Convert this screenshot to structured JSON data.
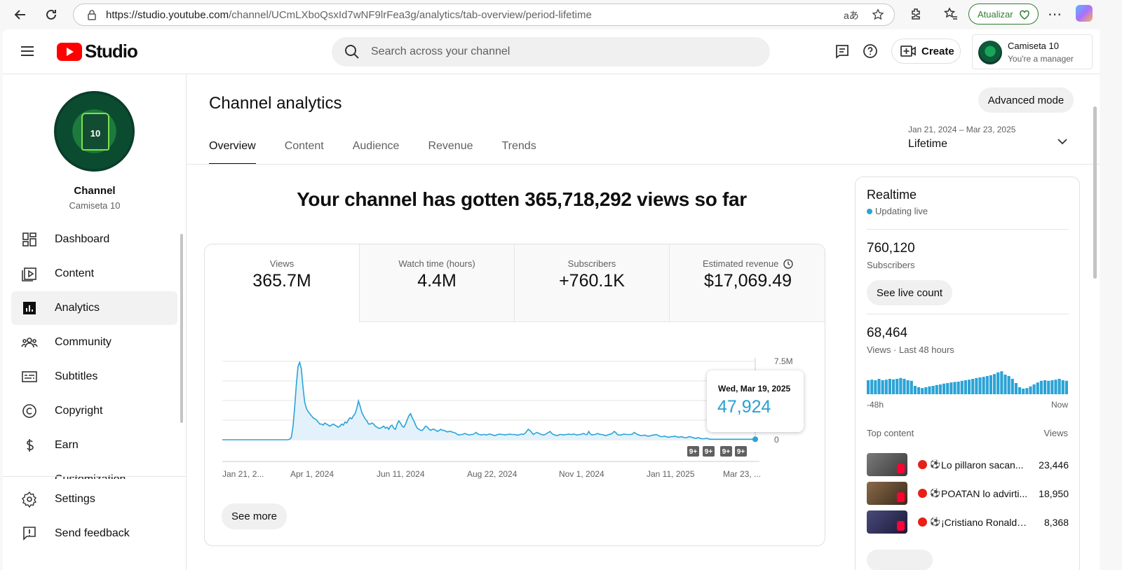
{
  "browser": {
    "url_host": "https://studio.youtube.com",
    "url_path": "/channel/UCmLXboQsxId7wNF9lrFea3g/analytics/tab-overview/period-lifetime",
    "update_label": "Atualizar"
  },
  "topbar": {
    "logo_text": "Studio",
    "search_placeholder": "Search across your channel",
    "create_label": "Create",
    "account_name": "Camiseta 10",
    "account_role": "You're a manager"
  },
  "sidebar": {
    "channel_title": "Channel",
    "channel_name": "Camiseta 10",
    "jersey_number": "10",
    "items": [
      {
        "label": "Dashboard",
        "icon": "dashboard-icon"
      },
      {
        "label": "Content",
        "icon": "content-icon"
      },
      {
        "label": "Analytics",
        "icon": "analytics-icon",
        "active": true
      },
      {
        "label": "Community",
        "icon": "community-icon"
      },
      {
        "label": "Subtitles",
        "icon": "subtitles-icon"
      },
      {
        "label": "Copyright",
        "icon": "copyright-icon"
      },
      {
        "label": "Earn",
        "icon": "earn-icon"
      },
      {
        "label": "Customization",
        "icon": "customization-icon"
      }
    ],
    "bottom": [
      {
        "label": "Settings",
        "icon": "gear-icon"
      },
      {
        "label": "Send feedback",
        "icon": "feedback-icon"
      }
    ]
  },
  "main": {
    "title": "Channel analytics",
    "advanced_label": "Advanced mode",
    "tabs": [
      "Overview",
      "Content",
      "Audience",
      "Revenue",
      "Trends"
    ],
    "period_range": "Jan 21, 2024 – Mar 23, 2025",
    "period_label": "Lifetime",
    "headline": "Your channel has gotten 365,718,292 views so far",
    "metrics": [
      {
        "label": "Views",
        "value": "365.7M"
      },
      {
        "label": "Watch time (hours)",
        "value": "4.4M"
      },
      {
        "label": "Subscribers",
        "value": "+760.1K"
      },
      {
        "label": "Estimated revenue",
        "value": "$17,069.49"
      }
    ],
    "see_more_label": "See more",
    "tooltip": {
      "date": "Wed, Mar 19, 2025",
      "value": "47,924"
    }
  },
  "chart_data": {
    "type": "area",
    "x_ticks": [
      "Jan 21, 2...",
      "Apr 1, 2024",
      "Jun 11, 2024",
      "Aug 22, 2024",
      "Nov 1, 2024",
      "Jan 11, 2025",
      "Mar 23, ..."
    ],
    "y_ticks": [
      "0",
      "7.5M"
    ],
    "ylim": [
      0,
      7500000
    ],
    "series": [
      {
        "values": [
          0,
          0,
          0,
          0,
          0,
          0,
          0,
          0,
          0,
          0,
          0,
          0,
          0,
          0,
          0,
          0,
          0,
          0,
          0,
          0,
          0,
          0,
          0,
          0,
          0,
          0,
          0,
          0,
          0,
          0,
          0,
          0,
          0,
          0,
          0,
          0,
          0,
          0,
          0,
          0,
          50000,
          200000,
          1200000,
          3000000,
          5200000,
          7000000,
          7400000,
          6800000,
          5000000,
          3600000,
          3000000,
          2700000,
          2500000,
          2300000,
          2100000,
          2000000,
          1900000,
          1700000,
          1500000,
          1500000,
          1400000,
          1600000,
          1500000,
          1400000,
          1300000,
          1400000,
          1500000,
          1400000,
          1300000,
          1200000,
          1300000,
          1500000,
          1400000,
          1700000,
          1600000,
          1900000,
          2100000,
          2000000,
          2300000,
          2500000,
          3000000,
          3700000,
          3200000,
          2600000,
          2300000,
          2000000,
          1800000,
          1500000,
          1500000,
          1600000,
          1500000,
          1300000,
          1200000,
          1100000,
          1100000,
          1200000,
          1300000,
          1100000,
          1200000,
          1000000,
          1300000,
          1400000,
          1100000,
          1000000,
          1500000,
          1800000,
          1600000,
          1300000,
          1200000,
          1500000,
          1900000,
          2300000,
          2500000,
          2100000,
          1800000,
          1400000,
          1100000,
          1000000,
          900000,
          900000,
          1100000,
          1300000,
          1200000,
          1000000,
          900000,
          1000000,
          1000000,
          900000,
          800000,
          900000,
          1000000,
          900000,
          900000,
          800000,
          750000,
          800000,
          800000,
          700000,
          700000,
          600000,
          500000,
          450000,
          500000,
          500000,
          600000,
          550000,
          500000,
          450000,
          500000,
          500000,
          600000,
          700000,
          550000,
          500000,
          450000,
          500000,
          500000,
          450000,
          500000,
          550000,
          500000,
          450000,
          400000,
          450000,
          500000,
          550000,
          500000,
          500000,
          450000,
          500000,
          500000,
          550000,
          500000,
          500000,
          500000,
          450000,
          450000,
          500000,
          550000,
          500000,
          600000,
          800000,
          1000000,
          900000,
          700000,
          500000,
          600000,
          700000,
          650000,
          550000,
          500000,
          450000,
          500000,
          600000,
          700000,
          800000,
          600000,
          500000,
          450000,
          400000,
          450000,
          500000,
          500000,
          450000,
          500000,
          500000,
          550000,
          500000,
          500000,
          550000,
          500000,
          450000,
          500000,
          500000,
          550000,
          600000,
          500000,
          500000,
          800000,
          550000,
          450000,
          500000,
          500000,
          600000,
          550000,
          500000,
          500000,
          450000,
          400000,
          450000,
          500000,
          550000,
          600000,
          800000,
          700000,
          500000,
          450000,
          450000,
          500000,
          550000,
          500000,
          500000,
          500000,
          500000,
          550000,
          700000,
          600000,
          500000,
          450000,
          400000,
          400000,
          450000,
          400000,
          350000,
          350000,
          400000,
          450000,
          450000,
          500000,
          450000,
          350000,
          300000,
          300000,
          350000,
          300000,
          250000,
          250000,
          300000,
          300000,
          350000,
          300000,
          250000,
          250000,
          300000,
          250000,
          200000,
          200000,
          250000,
          300000,
          250000,
          200000,
          150000,
          150000,
          200000,
          150000,
          100000,
          100000,
          100000,
          150000,
          100000,
          50000,
          50000,
          50000,
          50000,
          50000,
          50000,
          50000,
          50000,
          50000,
          50000,
          50000,
          50000,
          50000,
          50000,
          50000,
          50000,
          50000,
          50000,
          50000,
          50000,
          50000,
          50000,
          50000,
          50000,
          50000,
          50000,
          50000,
          47924
        ]
      }
    ],
    "annotations": [
      "9+",
      "9+",
      "9+",
      "9+"
    ],
    "grid": true
  },
  "realtime": {
    "title": "Realtime",
    "live_label": "Updating live",
    "subscribers_value": "760,120",
    "subscribers_label": "Subscribers",
    "live_count_label": "See live count",
    "views_value": "68,464",
    "views_label": "Views · Last 48 hours",
    "bar_left_label": "-48h",
    "bar_right_label": "Now",
    "bar_values": [
      0.5,
      0.52,
      0.5,
      0.55,
      0.5,
      0.52,
      0.55,
      0.53,
      0.55,
      0.58,
      0.55,
      0.5,
      0.48,
      0.3,
      0.25,
      0.22,
      0.25,
      0.28,
      0.3,
      0.33,
      0.35,
      0.38,
      0.4,
      0.42,
      0.44,
      0.45,
      0.48,
      0.5,
      0.52,
      0.55,
      0.58,
      0.6,
      0.62,
      0.65,
      0.68,
      0.72,
      0.78,
      0.82,
      0.7,
      0.65,
      0.55,
      0.4,
      0.25,
      0.2,
      0.22,
      0.28,
      0.35,
      0.42,
      0.48,
      0.5,
      0.48,
      0.5,
      0.52,
      0.55,
      0.5,
      0.48
    ],
    "top_content_label": "Top content",
    "views_col_label": "Views",
    "top_content": [
      {
        "title": "Lo pillaron sacan...",
        "views": "23,446"
      },
      {
        "title": "POATAN lo advirti...",
        "views": "18,950"
      },
      {
        "title": "¡Cristiano Ronaldo ...",
        "views": "8,368"
      }
    ]
  }
}
